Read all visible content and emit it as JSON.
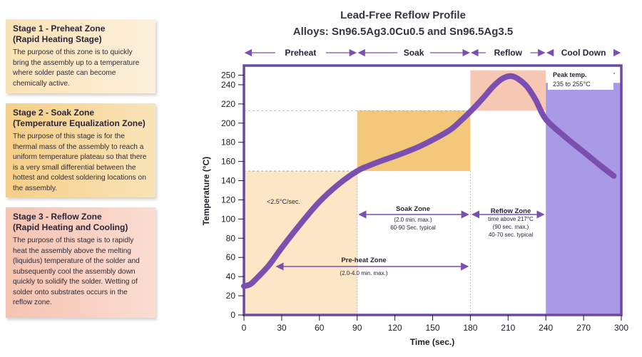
{
  "stages": [
    {
      "title_line1": "Stage 1 - Preheat Zone",
      "title_line2": "(Rapid Heating Stage)",
      "body": "The purpose of this zone is to quickly bring the assembly up to a temperature where solder paste can become chemically active."
    },
    {
      "title_line1": "Stage 2 - Soak Zone",
      "title_line2": "(Temperature Equalization Zone)",
      "body": "The purpose of this stage is for the thermal mass of the assembly to reach a uniform temperature plateau so that there is a very small differential between the hottest and coldest soldering locations on the assembly."
    },
    {
      "title_line1": "Stage 3 - Reflow Zone",
      "title_line2": "(Rapid Heating and Cooling)",
      "body": "The purpose of this stage is to rapidly heat the assembly above the melting (liquidus) temperature of the solder and subsequently cool the assembly down quickly to solidify the solder. Wetting of solder onto substrates occurs in the reflow zone."
    }
  ],
  "colors": {
    "curve": "#7a4fb0",
    "axis_frame": "#6a4aa2",
    "preheat_fill": "#fbe6c6",
    "soak_fill": "#f3c87a",
    "reflow_fill": "#f6c7b2",
    "cooldown_fill": "#a89ae6",
    "arrow": "#7a4fb0"
  },
  "chart_data": {
    "type": "line",
    "title": "Lead-Free Reflow Profile",
    "subtitle": "Alloys: Sn96.5Ag3.0Cu0.5 and Sn96.5Ag3.5",
    "xlabel": "Time (sec.)",
    "ylabel": "Temperature (°C)",
    "xlim": [
      0,
      300
    ],
    "ylim": [
      0,
      260
    ],
    "x_ticks": [
      0,
      30,
      60,
      90,
      120,
      150,
      180,
      210,
      240,
      270,
      300
    ],
    "y_ticks": [
      0,
      20,
      40,
      60,
      80,
      100,
      120,
      140,
      160,
      180,
      200,
      220,
      240,
      250
    ],
    "series": [
      {
        "x": [
          0,
          5,
          10,
          20,
          30,
          45,
          60,
          75,
          90,
          100,
          110,
          125,
          140,
          155,
          165,
          172,
          180,
          190,
          198,
          205,
          212,
          218,
          225,
          232,
          240,
          255,
          270,
          285,
          294
        ],
        "y": [
          30,
          32,
          38,
          52,
          70,
          95,
          118,
          136,
          150,
          156,
          161,
          168,
          176,
          186,
          194,
          202,
          212,
          226,
          238,
          246,
          249,
          246,
          238,
          224,
          204,
          186,
          170,
          154,
          145
        ]
      }
    ],
    "zones": [
      {
        "name": "Preheat",
        "x_start": 0,
        "x_end": 90,
        "y_top": 150
      },
      {
        "name": "Soak",
        "x_start": 90,
        "x_end": 180,
        "y_bottom": 150,
        "y_top": 213
      },
      {
        "name": "Reflow",
        "x_start": 180,
        "x_end": 240,
        "y_bottom": 213,
        "y_top": 255
      },
      {
        "name": "Cool Down",
        "x_start": 240,
        "x_end": 300,
        "y_top": 242
      }
    ],
    "reference_lines": [
      {
        "y": 150,
        "x_start": 0,
        "x_end": 90
      },
      {
        "y": 213,
        "x_start": 0,
        "x_end": 180
      }
    ],
    "top_labels": [
      "Preheat",
      "Soak",
      "Reflow",
      "Cool Down"
    ],
    "annotations": {
      "rate": "<2.5°C/sec.",
      "soak_zone_title": "Soak Zone",
      "soak_zone_line1": "(2.0 min. max.)",
      "soak_zone_line2": "60-90 Sec. typical",
      "preheat_zone_title": "Pre-heat Zone",
      "preheat_zone_line1": "(2.0-4.0 min. max.)",
      "reflow_zone_title": "Reflow Zone",
      "reflow_zone_line1": "time above 217°C",
      "reflow_zone_line2": "(90 sec. max.)",
      "reflow_zone_line3": "40-70 sec. typical",
      "peak_title": "Peak temp.",
      "peak_range": "235 to 255°C"
    }
  }
}
